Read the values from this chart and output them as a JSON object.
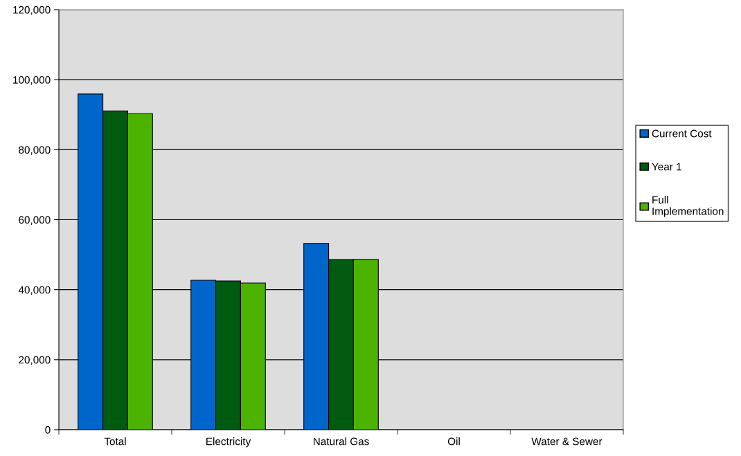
{
  "chart_data": {
    "type": "bar",
    "categories": [
      "Total",
      "Electricity",
      "Natural Gas",
      "Oil",
      "Water & Sewer"
    ],
    "series": [
      {
        "name": "Current Cost",
        "color": "#0066cc",
        "values": [
          95900,
          42700,
          53200,
          0,
          0
        ]
      },
      {
        "name": "Year 1",
        "color": "#005a10",
        "values": [
          91100,
          42500,
          48600,
          0,
          0
        ]
      },
      {
        "name": "Full Implementation",
        "color": "#4cb300",
        "values": [
          90300,
          41900,
          48600,
          0,
          0
        ]
      }
    ],
    "ylim": [
      0,
      120000
    ],
    "yticks": [
      {
        "value": 0,
        "label": "0"
      },
      {
        "value": 20000,
        "label": "20,000"
      },
      {
        "value": 40000,
        "label": "40,000"
      },
      {
        "value": 60000,
        "label": "60,000"
      },
      {
        "value": 80000,
        "label": "80,000"
      },
      {
        "value": 100000,
        "label": "100,000"
      },
      {
        "value": 120000,
        "label": "120,000"
      }
    ],
    "grid": "y",
    "legend": "right"
  }
}
